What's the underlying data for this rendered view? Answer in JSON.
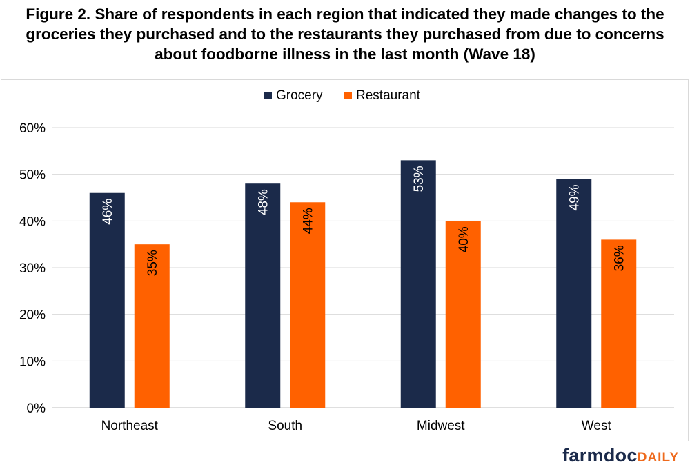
{
  "title": "Figure 2. Share of respondents in each region that indicated they made changes to the\ngroceries they purchased and to the restaurants they purchased from due to concerns\nabout foodborne illness in the last month (Wave 18)",
  "brand": {
    "main": "farmdoc",
    "accent": "DAILY"
  },
  "colors": {
    "grocery": "#1b2a4a",
    "restaurant": "#ff6100"
  },
  "chart_data": {
    "type": "bar",
    "categories": [
      "Northeast",
      "South",
      "Midwest",
      "West"
    ],
    "series": [
      {
        "name": "Grocery",
        "values": [
          46,
          48,
          53,
          49
        ],
        "color": "#1b2a4a",
        "labels": [
          "46%",
          "48%",
          "53%",
          "49%"
        ]
      },
      {
        "name": "Restaurant",
        "values": [
          35,
          44,
          40,
          36
        ],
        "color": "#ff6100",
        "labels": [
          "35%",
          "44%",
          "40%",
          "36%"
        ]
      }
    ],
    "ylim": [
      0,
      60
    ],
    "yticks": [
      "0%",
      "10%",
      "20%",
      "30%",
      "40%",
      "50%",
      "60%"
    ],
    "grid": true,
    "legend_position": "top-center"
  }
}
